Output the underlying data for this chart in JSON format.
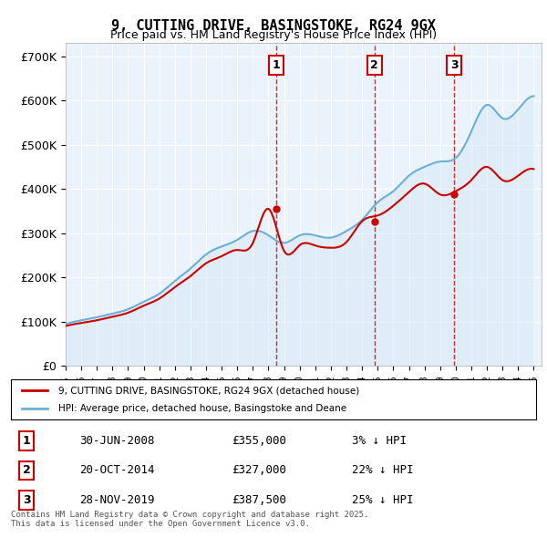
{
  "title": "9, CUTTING DRIVE, BASINGSTOKE, RG24 9GX",
  "subtitle": "Price paid vs. HM Land Registry's House Price Index (HPI)",
  "ylabel_ticks": [
    "£0",
    "£100K",
    "£200K",
    "£300K",
    "£400K",
    "£500K",
    "£600K",
    "£700K"
  ],
  "ytick_values": [
    0,
    100000,
    200000,
    300000,
    400000,
    500000,
    600000,
    700000
  ],
  "ylim": [
    0,
    730000
  ],
  "background_color": "#ffffff",
  "plot_bg_color": "#eaf3fb",
  "grid_color": "#ffffff",
  "sale_dates": [
    "2008-06-30",
    "2014-10-20",
    "2019-11-28"
  ],
  "sale_prices": [
    355000,
    327000,
    387500
  ],
  "sale_labels": [
    "1",
    "2",
    "3"
  ],
  "sale_info": [
    {
      "label": "1",
      "date": "30-JUN-2008",
      "price": "£355,000",
      "note": "3% ↓ HPI"
    },
    {
      "label": "2",
      "date": "20-OCT-2014",
      "price": "£327,000",
      "note": "22% ↓ HPI"
    },
    {
      "label": "3",
      "date": "28-NOV-2019",
      "price": "£387,500",
      "note": "25% ↓ HPI"
    }
  ],
  "legend1": "9, CUTTING DRIVE, BASINGSTOKE, RG24 9GX (detached house)",
  "legend2": "HPI: Average price, detached house, Basingstoke and Deane",
  "footer": "Contains HM Land Registry data © Crown copyright and database right 2025.\nThis data is licensed under the Open Government Licence v3.0.",
  "price_line_color": "#cc0000",
  "hpi_line_color": "#6baed6",
  "hpi_fill_color": "#d6e9f8",
  "vline_color": "#cc0000",
  "sale_box_color": "#cc0000",
  "hpi_data_years": [
    1995,
    1996,
    1997,
    1998,
    1999,
    2000,
    2001,
    2002,
    2003,
    2004,
    2005,
    2006,
    2007,
    2008,
    2009,
    2010,
    2011,
    2012,
    2013,
    2014,
    2015,
    2016,
    2017,
    2018,
    2019,
    2020,
    2021,
    2022,
    2023,
    2024,
    2025
  ],
  "hpi_values": [
    95000,
    103000,
    110000,
    118000,
    128000,
    145000,
    163000,
    192000,
    220000,
    252000,
    270000,
    285000,
    305000,
    295000,
    278000,
    295000,
    295000,
    290000,
    305000,
    330000,
    370000,
    395000,
    430000,
    450000,
    462000,
    470000,
    530000,
    590000,
    560000,
    580000,
    610000
  ],
  "price_data_years": [
    1995,
    1996,
    1997,
    1998,
    1999,
    2000,
    2001,
    2002,
    2003,
    2004,
    2005,
    2006,
    2007,
    2008,
    2009,
    2010,
    2011,
    2012,
    2013,
    2014,
    2015,
    2016,
    2017,
    2018,
    2019,
    2020,
    2021,
    2022,
    2023,
    2024,
    2025
  ],
  "price_values": [
    90000,
    97000,
    103000,
    111000,
    120000,
    136000,
    152000,
    178000,
    203000,
    232000,
    248000,
    262000,
    278000,
    355000,
    260000,
    273000,
    272000,
    267000,
    280000,
    327000,
    340000,
    362000,
    393000,
    412000,
    387500,
    395000,
    420000,
    450000,
    420000,
    430000,
    445000
  ]
}
